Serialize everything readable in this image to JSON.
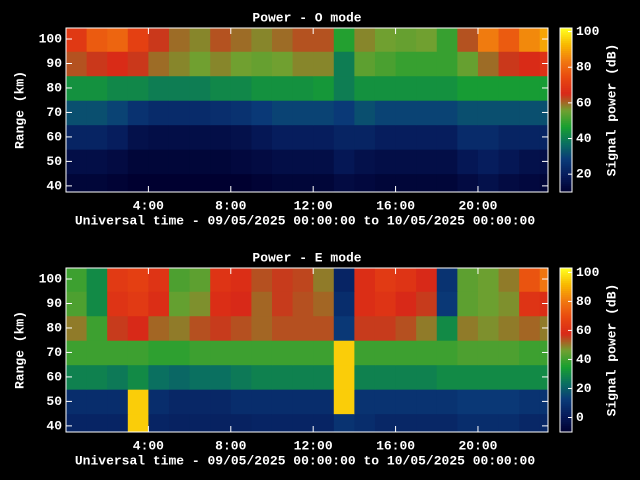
{
  "chart_data": [
    {
      "type": "heatmap",
      "title": "Power - O mode",
      "xlabel": "Universal time - 09/05/2025 00:00:00 to 10/05/2025 00:00:00",
      "ylabel": "Range (km)",
      "colorbar_label": "Signal power (dB)",
      "x": [
        0,
        1,
        2,
        3,
        4,
        5,
        6,
        7,
        8,
        9,
        10,
        11,
        12,
        13,
        14,
        15,
        16,
        17,
        18,
        19,
        20,
        21,
        22,
        23
      ],
      "y": [
        40,
        50,
        60,
        70,
        80,
        90,
        100
      ],
      "z": [
        [
          12,
          12,
          11,
          10,
          10,
          10,
          10,
          10,
          10,
          11,
          12,
          12,
          12,
          14,
          13,
          12,
          12,
          12,
          12,
          14,
          16,
          14,
          13,
          12
        ],
        [
          15,
          15,
          14,
          12,
          12,
          12,
          12,
          12,
          13,
          14,
          15,
          15,
          15,
          18,
          16,
          15,
          15,
          15,
          15,
          18,
          20,
          18,
          16,
          15
        ],
        [
          22,
          22,
          20,
          16,
          15,
          15,
          15,
          15,
          16,
          18,
          20,
          20,
          20,
          22,
          22,
          20,
          20,
          20,
          20,
          24,
          24,
          22,
          22,
          22
        ],
        [
          32,
          32,
          30,
          26,
          24,
          24,
          24,
          25,
          26,
          28,
          30,
          30,
          30,
          28,
          32,
          30,
          30,
          30,
          30,
          32,
          32,
          32,
          32,
          32
        ],
        [
          44,
          44,
          42,
          42,
          40,
          40,
          40,
          42,
          42,
          44,
          44,
          44,
          45,
          40,
          44,
          44,
          44,
          44,
          44,
          46,
          46,
          46,
          46,
          46
        ],
        [
          62,
          64,
          66,
          64,
          60,
          58,
          56,
          58,
          56,
          55,
          56,
          58,
          58,
          40,
          54,
          52,
          50,
          50,
          50,
          55,
          60,
          64,
          66,
          68
        ],
        [
          70,
          78,
          80,
          72,
          64,
          60,
          58,
          62,
          60,
          58,
          60,
          62,
          62,
          48,
          58,
          56,
          55,
          56,
          50,
          62,
          84,
          78,
          86,
          90
        ]
      ],
      "xlim": [
        0,
        23.4
      ],
      "ylim": [
        37.5,
        104.5
      ],
      "xticks": [
        {
          "value": 4,
          "label": "4:00"
        },
        {
          "value": 8,
          "label": "8:00"
        },
        {
          "value": 12,
          "label": "12:00"
        },
        {
          "value": 16,
          "label": "16:00"
        },
        {
          "value": 20,
          "label": "20:00"
        }
      ],
      "yticks": [
        40,
        50,
        60,
        70,
        80,
        90,
        100
      ],
      "clim": [
        10,
        102
      ],
      "cticks": [
        20,
        40,
        60,
        80,
        100
      ],
      "colormap": [
        "#000030",
        "#061a5a",
        "#0a3a78",
        "#0a7060",
        "#18a030",
        "#70a030",
        "#d82818",
        "#e84810",
        "#f07810",
        "#f8b800",
        "#ffff20"
      ]
    },
    {
      "type": "heatmap",
      "title": "Power - E mode",
      "xlabel": "Universal time - 09/05/2025 00:00:00 to 10/05/2025 00:00:00",
      "ylabel": "Range (km)",
      "colorbar_label": "Signal power (dB)",
      "x": [
        0,
        1,
        2,
        3,
        4,
        5,
        6,
        7,
        8,
        9,
        10,
        11,
        12,
        13,
        14,
        15,
        16,
        17,
        18,
        19,
        20,
        21,
        22,
        23
      ],
      "y": [
        40,
        50,
        60,
        70,
        80,
        90,
        100
      ],
      "z": [
        [
          5,
          5,
          5,
          95,
          5,
          4,
          4,
          4,
          4,
          5,
          5,
          5,
          5,
          10,
          8,
          6,
          6,
          6,
          6,
          8,
          8,
          8,
          6,
          6
        ],
        [
          8,
          8,
          8,
          95,
          8,
          6,
          6,
          6,
          8,
          8,
          8,
          8,
          8,
          95,
          10,
          10,
          10,
          10,
          10,
          12,
          12,
          12,
          10,
          10
        ],
        [
          28,
          28,
          26,
          30,
          24,
          22,
          24,
          24,
          26,
          28,
          28,
          28,
          28,
          95,
          28,
          28,
          28,
          28,
          30,
          30,
          30,
          30,
          30,
          30
        ],
        [
          40,
          40,
          40,
          40,
          38,
          38,
          40,
          40,
          40,
          40,
          40,
          40,
          40,
          95,
          40,
          40,
          40,
          40,
          40,
          42,
          42,
          42,
          40,
          40
        ],
        [
          50,
          40,
          56,
          58,
          52,
          50,
          54,
          56,
          54,
          52,
          54,
          54,
          54,
          12,
          56,
          56,
          54,
          50,
          30,
          50,
          48,
          50,
          52,
          50
        ],
        [
          42,
          30,
          62,
          64,
          60,
          45,
          48,
          60,
          58,
          52,
          56,
          54,
          52,
          8,
          60,
          62,
          58,
          56,
          12,
          44,
          46,
          48,
          62,
          60
        ],
        [
          40,
          30,
          64,
          66,
          62,
          42,
          44,
          62,
          60,
          54,
          56,
          55,
          50,
          5,
          60,
          64,
          62,
          58,
          10,
          44,
          46,
          50,
          72,
          80
        ]
      ],
      "xlim": [
        0,
        23.4
      ],
      "ylim": [
        37.5,
        104.5
      ],
      "xticks": [
        {
          "value": 4,
          "label": "4:00"
        },
        {
          "value": 8,
          "label": "8:00"
        },
        {
          "value": 12,
          "label": "12:00"
        },
        {
          "value": 16,
          "label": "16:00"
        },
        {
          "value": 20,
          "label": "20:00"
        }
      ],
      "yticks": [
        40,
        50,
        60,
        70,
        80,
        90,
        100
      ],
      "clim": [
        -10,
        103
      ],
      "cticks": [
        0,
        20,
        40,
        60,
        80,
        100
      ],
      "colormap": [
        "#000030",
        "#061a5a",
        "#0a3a78",
        "#0a7060",
        "#18a030",
        "#70a030",
        "#d82818",
        "#e84810",
        "#f07810",
        "#f8b800",
        "#ffff20"
      ]
    }
  ]
}
